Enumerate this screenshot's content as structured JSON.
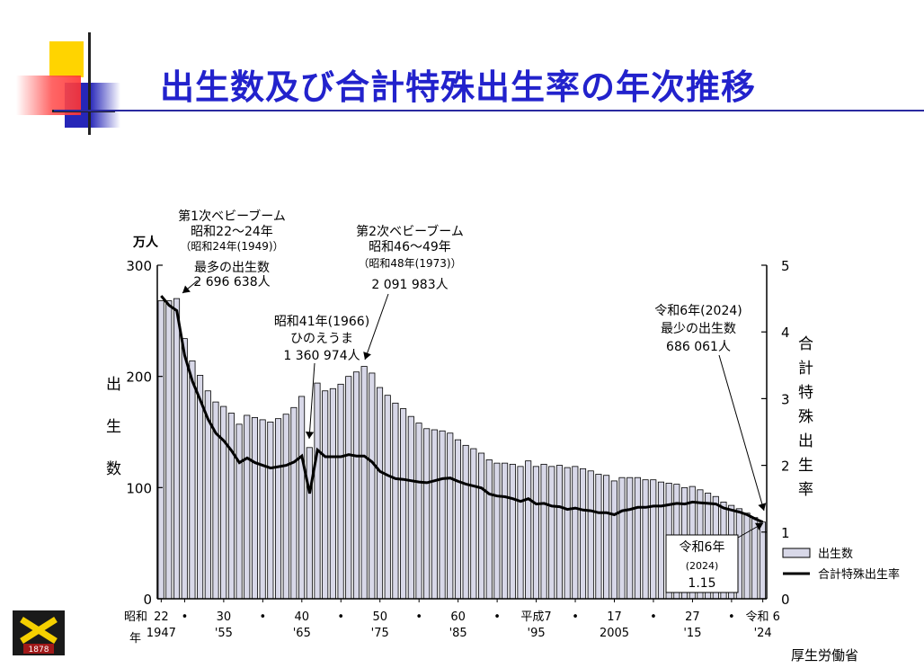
{
  "title": "出生数及び合計特殊出生率の年次推移",
  "source": "厚生労働省",
  "logo_text": "1878",
  "colors": {
    "title": "#2222cc",
    "bar_fill": "#d8d8e8",
    "bar_stroke": "#000000",
    "line": "#000000"
  },
  "chart_data": {
    "type": "bar",
    "left_unit": "万人",
    "left_axis_title": [
      "出",
      "生",
      "数"
    ],
    "right_axis_title": [
      "合",
      "計",
      "特",
      "殊",
      "出",
      "生",
      "率"
    ],
    "left_ylim": [
      0,
      300
    ],
    "left_ticks": [
      "0",
      "100",
      "200",
      "300"
    ],
    "right_ylim": [
      0,
      5
    ],
    "right_ticks": [
      "0",
      "1",
      "2",
      "3",
      "4",
      "5"
    ],
    "x_tick_labels": [
      {
        "year": 1947,
        "label": "22",
        "label2": "1947"
      },
      {
        "year": 1950,
        "label": "•",
        "label2": ""
      },
      {
        "year": 1955,
        "label": "30",
        "label2": "'55"
      },
      {
        "year": 1960,
        "label": "•",
        "label2": ""
      },
      {
        "year": 1965,
        "label": "40",
        "label2": "'65"
      },
      {
        "year": 1970,
        "label": "•",
        "label2": ""
      },
      {
        "year": 1975,
        "label": "50",
        "label2": "'75"
      },
      {
        "year": 1980,
        "label": "•",
        "label2": ""
      },
      {
        "year": 1985,
        "label": "60",
        "label2": "'85"
      },
      {
        "year": 1990,
        "label": "•",
        "label2": ""
      },
      {
        "year": 1995,
        "label": "平成7",
        "label2": "'95"
      },
      {
        "year": 2000,
        "label": "•",
        "label2": ""
      },
      {
        "year": 2005,
        "label": "17",
        "label2": "2005"
      },
      {
        "year": 2010,
        "label": "•",
        "label2": ""
      },
      {
        "year": 2015,
        "label": "27",
        "label2": "'15"
      },
      {
        "year": 2020,
        "label": "•",
        "label2": ""
      },
      {
        "year": 2024,
        "label": "令和 6",
        "label2": "'24"
      }
    ],
    "x_era_label": [
      "昭和",
      "年"
    ],
    "x": [
      1947,
      1948,
      1949,
      1950,
      1951,
      1952,
      1953,
      1954,
      1955,
      1956,
      1957,
      1958,
      1959,
      1960,
      1961,
      1962,
      1963,
      1964,
      1965,
      1966,
      1967,
      1968,
      1969,
      1970,
      1971,
      1972,
      1973,
      1974,
      1975,
      1976,
      1977,
      1978,
      1979,
      1980,
      1981,
      1982,
      1983,
      1984,
      1985,
      1986,
      1987,
      1988,
      1989,
      1990,
      1991,
      1992,
      1993,
      1994,
      1995,
      1996,
      1997,
      1998,
      1999,
      2000,
      2001,
      2002,
      2003,
      2004,
      2005,
      2006,
      2007,
      2008,
      2009,
      2010,
      2011,
      2012,
      2013,
      2014,
      2015,
      2016,
      2017,
      2018,
      2019,
      2020,
      2021,
      2022,
      2023,
      2024
    ],
    "series": [
      {
        "name": "出生数",
        "values": [
          268,
          268,
          270,
          234,
          214,
          201,
          187,
          177,
          173,
          167,
          157,
          165,
          163,
          161,
          159,
          162,
          166,
          172,
          182,
          136,
          194,
          187,
          189,
          193,
          200,
          204,
          209,
          203,
          190,
          183,
          176,
          171,
          164,
          158,
          153,
          152,
          151,
          149,
          143,
          138,
          135,
          131,
          125,
          122,
          122,
          121,
          119,
          124,
          119,
          121,
          119,
          120,
          118,
          119,
          117,
          115,
          112,
          111,
          106,
          109,
          109,
          109,
          107,
          107,
          105,
          104,
          103,
          100,
          101,
          98,
          95,
          92,
          87,
          84,
          81,
          77,
          73,
          69
        ]
      },
      {
        "name": "合計特殊出生率",
        "values": [
          4.54,
          4.4,
          4.32,
          3.65,
          3.26,
          2.98,
          2.69,
          2.48,
          2.37,
          2.22,
          2.04,
          2.11,
          2.04,
          2.0,
          1.96,
          1.98,
          2.0,
          2.05,
          2.14,
          1.58,
          2.23,
          2.13,
          2.13,
          2.13,
          2.16,
          2.14,
          2.14,
          2.05,
          1.91,
          1.85,
          1.8,
          1.79,
          1.77,
          1.75,
          1.74,
          1.77,
          1.8,
          1.81,
          1.76,
          1.72,
          1.69,
          1.66,
          1.57,
          1.54,
          1.53,
          1.5,
          1.46,
          1.5,
          1.42,
          1.43,
          1.39,
          1.38,
          1.34,
          1.36,
          1.33,
          1.32,
          1.29,
          1.29,
          1.26,
          1.32,
          1.34,
          1.37,
          1.37,
          1.39,
          1.39,
          1.41,
          1.43,
          1.42,
          1.45,
          1.44,
          1.43,
          1.42,
          1.36,
          1.33,
          1.3,
          1.26,
          1.2,
          1.15
        ]
      }
    ],
    "legend": {
      "position": "bottom-right",
      "items": [
        "出生数",
        "合計特殊出生率"
      ]
    },
    "annotations": {
      "first_boom": [
        "第1次ベビーブーム",
        "昭和22～24年",
        "（昭和24年(1949)）",
        "最多の出生数",
        "2 696 638人"
      ],
      "hinoeuma": [
        "昭和41年(1966)",
        "ひのえうま",
        "1 360 974人"
      ],
      "second_boom": [
        "第2次ベビーブーム",
        "昭和46～49年",
        "（昭和48年(1973)）",
        "2 091 983人"
      ],
      "latest": [
        "令和6年(2024)",
        "最少の出生数",
        "686 061人"
      ],
      "tfr_box": [
        "令和6年",
        "(2024)",
        "1.15"
      ]
    }
  }
}
